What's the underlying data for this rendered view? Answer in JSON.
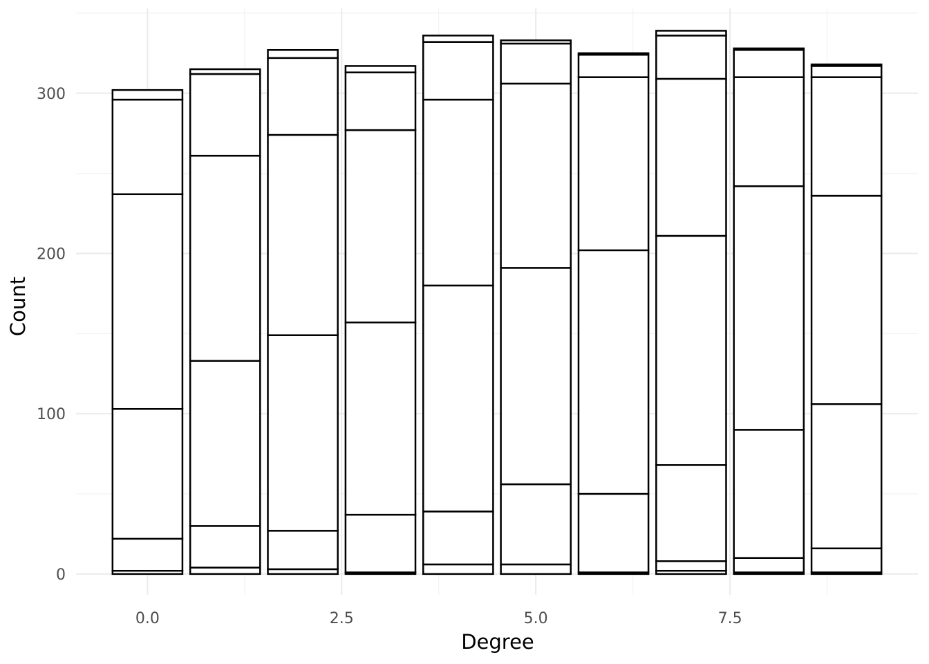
{
  "chart_data": {
    "type": "bar",
    "stacked": true,
    "xlabel": "Degree",
    "ylabel": "Count",
    "x_ticks": [
      "0.0",
      "2.5",
      "5.0",
      "7.5"
    ],
    "y_ticks": [
      "0",
      "100",
      "200",
      "300"
    ],
    "xlim": [
      -0.92,
      9.92
    ],
    "ylim": [
      -13,
      353
    ],
    "grid": true,
    "fill": "#ffffff",
    "outline": "#000000",
    "categories": [
      0,
      1,
      2,
      3,
      4,
      5,
      6,
      7,
      8,
      9
    ],
    "stack_boundaries": [
      [
        0,
        2,
        22,
        103,
        237,
        296,
        302
      ],
      [
        0,
        4,
        30,
        133,
        261,
        312,
        315
      ],
      [
        0,
        3,
        27,
        149,
        274,
        322,
        327
      ],
      [
        0,
        1,
        37,
        157,
        277,
        313,
        317
      ],
      [
        0,
        6,
        39,
        180,
        296,
        332,
        336
      ],
      [
        0,
        6,
        56,
        191,
        306,
        331,
        333
      ],
      [
        0,
        1,
        50,
        202,
        310,
        324,
        325
      ],
      [
        0,
        2,
        8,
        68,
        211,
        309,
        336,
        339
      ],
      [
        0,
        1,
        10,
        90,
        242,
        310,
        327,
        328
      ],
      [
        0,
        1,
        16,
        106,
        236,
        310,
        317,
        318
      ]
    ]
  }
}
